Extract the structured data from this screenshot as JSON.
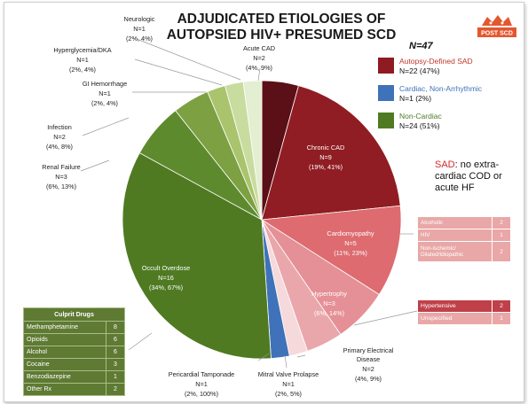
{
  "title_line1": "ADJUDICATED ETIOLOGIES OF",
  "title_line2": "AUTOPSIED HIV+ PRESUMED SCD",
  "logo_text": "POST SCD",
  "total_n": "N=47",
  "legend": [
    {
      "name": "Autopsy-Defined SAD",
      "count": "N=22 (47%)",
      "color": "#8e1b21",
      "text_color": "#c0392b"
    },
    {
      "name": "Cardiac, Non-Arrhythmic",
      "count": "N=1 (2%)",
      "color": "#3f72b8",
      "text_color": "#3f72b8"
    },
    {
      "name": "Non-Cardiac",
      "count": "N=24 (51%)",
      "color": "#4f7a22",
      "text_color": "#4f7a22"
    }
  ],
  "sad_note": {
    "key": "SAD",
    "line1": ": no extra-",
    "line2": "cardiac COD or",
    "line3": "acute HF",
    "key_color": "#d62828"
  },
  "chart_data": {
    "type": "pie",
    "title": "ADJUDICATED ETIOLOGIES OF AUTOPSIED HIV+ PRESUMED SCD",
    "total": 47,
    "start": "12 o'clock",
    "direction": "clockwise",
    "slices": [
      {
        "label": "Acute CAD",
        "n": "N=2",
        "pct": "(4%, 9%)",
        "value": 2,
        "color": "#5a1016",
        "group": "Autopsy-Defined SAD"
      },
      {
        "label": "Chronic CAD",
        "n": "N=9",
        "pct": "(19%, 41%)",
        "value": 9,
        "color": "#901d23",
        "group": "Autopsy-Defined SAD"
      },
      {
        "label": "Cardiomyopathy",
        "n": "N=5",
        "pct": "(11%, 23%)",
        "value": 5,
        "color": "#dd6b6f",
        "group": "Autopsy-Defined SAD"
      },
      {
        "label": "Hypertrophy",
        "n": "N=3",
        "pct": "(6%, 14%)",
        "value": 3,
        "color": "#e59096",
        "group": "Autopsy-Defined SAD"
      },
      {
        "label": "Primary Electrical Disease",
        "n": "N=2",
        "pct": "(4%, 9%)",
        "value": 2,
        "color": "#eaa7ab",
        "group": "Autopsy-Defined SAD"
      },
      {
        "label": "Mitral Valve Prolapse",
        "n": "N=1",
        "pct": "(2%, 5%)",
        "value": 1,
        "color": "#f6d9db",
        "group": "Autopsy-Defined SAD"
      },
      {
        "label": "Pericardial Tamponade",
        "n": "N=1",
        "pct": "(2%, 100%)",
        "value": 1,
        "color": "#3f72b8",
        "group": "Cardiac, Non-Arrhythmic"
      },
      {
        "label": "Occult Overdose",
        "n": "N=16",
        "pct": "(34%, 67%)",
        "value": 16,
        "color": "#4f7a22",
        "group": "Non-Cardiac"
      },
      {
        "label": "Renal Failure",
        "n": "N=3",
        "pct": "(6%, 13%)",
        "value": 3,
        "color": "#5e8a2e",
        "group": "Non-Cardiac"
      },
      {
        "label": "Infection",
        "n": "N=2",
        "pct": "(4%, 8%)",
        "value": 2,
        "color": "#7ca042",
        "group": "Non-Cardiac"
      },
      {
        "label": "GI Hemorrhage",
        "n": "N=1",
        "pct": "(2%, 4%)",
        "value": 1,
        "color": "#a9c46c",
        "group": "Non-Cardiac"
      },
      {
        "label": "Hyperglycemia/DKA",
        "n": "N=1",
        "pct": "(2%, 4%)",
        "value": 1,
        "color": "#c9dca0",
        "group": "Non-Cardiac"
      },
      {
        "label": "Neurologic",
        "n": "N=1",
        "pct": "(2%, 4%)",
        "value": 1,
        "color": "#e4eed0",
        "group": "Non-Cardiac"
      }
    ]
  },
  "culprit_drugs": {
    "title": "Culprit Drugs",
    "rows": [
      {
        "name": "Methamphetamine",
        "value": "8"
      },
      {
        "name": "Opioids",
        "value": "6"
      },
      {
        "name": "Alcohol",
        "value": "6"
      },
      {
        "name": "Cocaine",
        "value": "3"
      },
      {
        "name": "Benzodiazepine",
        "value": "1"
      },
      {
        "name": "Other Rx",
        "value": "2"
      }
    ]
  },
  "cardiomyopathy_types": [
    {
      "name": "Alcoholic",
      "value": "2"
    },
    {
      "name": "HIV",
      "value": "1"
    },
    {
      "name": "Non-ischemic/ Dilated/Idiopathic",
      "value": "2"
    }
  ],
  "hypertrophy_types": [
    {
      "name": "Hypertensive",
      "value": "2"
    },
    {
      "name": "Unspecified",
      "value": "1"
    }
  ]
}
